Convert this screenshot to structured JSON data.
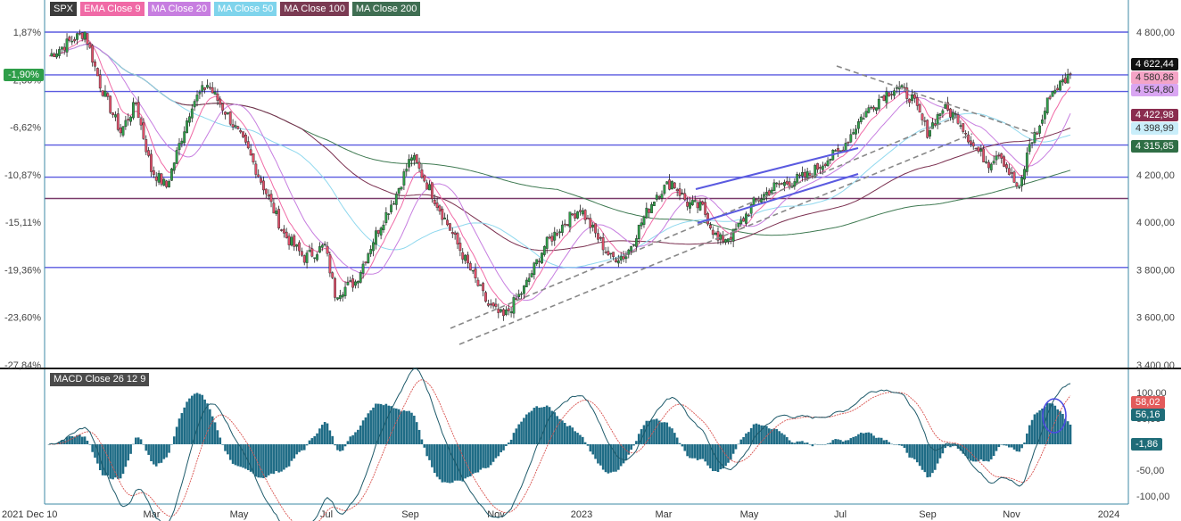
{
  "legend": [
    {
      "label": "SPX",
      "bg": "#3b3b3b"
    },
    {
      "label": "EMA Close 9",
      "bg": "#f06aa6"
    },
    {
      "label": "MA Close 20",
      "bg": "#c77ee0"
    },
    {
      "label": "MA Close 50",
      "bg": "#7fd4ec"
    },
    {
      "label": "MA Close 100",
      "bg": "#7a3a52"
    },
    {
      "label": "MA Close 200",
      "bg": "#3f6e52"
    }
  ],
  "macd_label": "MACD Close 26 12 9",
  "badges": {
    "price": {
      "text": "4 622,44",
      "bg": "#111111",
      "fg": "#ffffff"
    },
    "ema9": {
      "text": "4 580,86",
      "bg": "#f4a4c6",
      "fg": "#333333"
    },
    "ma20": {
      "text": "4 554,80",
      "bg": "#d9a6f2",
      "fg": "#333333"
    },
    "ma100": {
      "text": "4 422,98",
      "bg": "#8a2d4f",
      "fg": "#ffffff"
    },
    "ma50": {
      "text": "4 398,99",
      "bg": "#c9eefa",
      "fg": "#333333"
    },
    "ma200": {
      "text": "4 315,85",
      "bg": "#2f6e45",
      "fg": "#ffffff"
    },
    "pct": {
      "text": "-1,90%",
      "bg": "#2e9e49",
      "fg": "#ffffff"
    },
    "macd": {
      "text": "58,02",
      "bg": "#e35b5b",
      "fg": "#ffffff"
    },
    "signal": {
      "text": "56,16",
      "bg": "#1f6c78",
      "fg": "#ffffff"
    },
    "hist": {
      "text": "-1,86",
      "bg": "#1f6c78",
      "fg": "#ffffff"
    }
  },
  "chart_data": {
    "type": "candlestick",
    "price_ticks": [
      "4 800,00",
      "4 600,00",
      "4 400,00",
      "4 200,00",
      "4 000,00",
      "3 800,00",
      "3 600,00",
      "3 400,00"
    ],
    "price_tick_values": [
      4800,
      4600,
      4400,
      4200,
      4000,
      3800,
      3600,
      3400
    ],
    "pct_ticks": [
      "1,87%",
      "-2,36%",
      "-6,62%",
      "-10,87%",
      "-15,11%",
      "-19,36%",
      "-23,60%",
      "-27,84%"
    ],
    "macd_ticks": [
      "100,00",
      "50,00",
      "-50,00",
      "-100,00"
    ],
    "macd_tick_values": [
      100,
      50,
      -50,
      -100
    ],
    "x_ticks": [
      "2021 Dec 10",
      "Mar",
      "May",
      "Jul",
      "Sep",
      "Nov",
      "2023",
      "Mar",
      "May",
      "Jul",
      "Sep",
      "Nov",
      "2024"
    ],
    "horizontal_levels": [
      {
        "value": 4800,
        "color": "#5a5ae0"
      },
      {
        "value": 4620,
        "color": "#5a5ae0"
      },
      {
        "value": 4550,
        "color": "#5a5ae0"
      },
      {
        "value": 4325,
        "color": "#5a5ae0"
      },
      {
        "value": 4190,
        "color": "#5a5ae0"
      },
      {
        "value": 4100,
        "color": "#7a3a6a"
      },
      {
        "value": 3810,
        "color": "#5a5ae0"
      }
    ],
    "price_keypoints": [
      [
        0,
        4700
      ],
      [
        8,
        4760
      ],
      [
        14,
        4800
      ],
      [
        20,
        4580
      ],
      [
        28,
        4380
      ],
      [
        34,
        4500
      ],
      [
        40,
        4220
      ],
      [
        46,
        4150
      ],
      [
        56,
        4500
      ],
      [
        62,
        4580
      ],
      [
        70,
        4450
      ],
      [
        78,
        4300
      ],
      [
        86,
        4100
      ],
      [
        92,
        3950
      ],
      [
        100,
        3850
      ],
      [
        108,
        3900
      ],
      [
        112,
        3700
      ],
      [
        120,
        3750
      ],
      [
        128,
        3950
      ],
      [
        136,
        4120
      ],
      [
        142,
        4280
      ],
      [
        146,
        4200
      ],
      [
        150,
        4120
      ],
      [
        158,
        3950
      ],
      [
        164,
        3820
      ],
      [
        172,
        3650
      ],
      [
        178,
        3600
      ],
      [
        186,
        3720
      ],
      [
        194,
        3900
      ],
      [
        202,
        4000
      ],
      [
        208,
        4060
      ],
      [
        214,
        3950
      ],
      [
        220,
        3850
      ],
      [
        226,
        3860
      ],
      [
        232,
        4000
      ],
      [
        238,
        4120
      ],
      [
        244,
        4170
      ],
      [
        250,
        4080
      ],
      [
        256,
        4060
      ],
      [
        262,
        3920
      ],
      [
        268,
        3950
      ],
      [
        276,
        4080
      ],
      [
        284,
        4150
      ],
      [
        290,
        4170
      ],
      [
        298,
        4200
      ],
      [
        304,
        4260
      ],
      [
        310,
        4300
      ],
      [
        318,
        4440
      ],
      [
        326,
        4530
      ],
      [
        332,
        4570
      ],
      [
        338,
        4520
      ],
      [
        344,
        4380
      ],
      [
        350,
        4480
      ],
      [
        356,
        4440
      ],
      [
        362,
        4320
      ],
      [
        368,
        4250
      ],
      [
        372,
        4300
      ],
      [
        376,
        4210
      ],
      [
        380,
        4130
      ],
      [
        384,
        4330
      ],
      [
        388,
        4400
      ],
      [
        392,
        4540
      ],
      [
        396,
        4580
      ],
      [
        400,
        4622
      ]
    ],
    "annotations": [
      "ascending channel",
      "dashed trendlines",
      "circle on MACD crossover"
    ]
  }
}
